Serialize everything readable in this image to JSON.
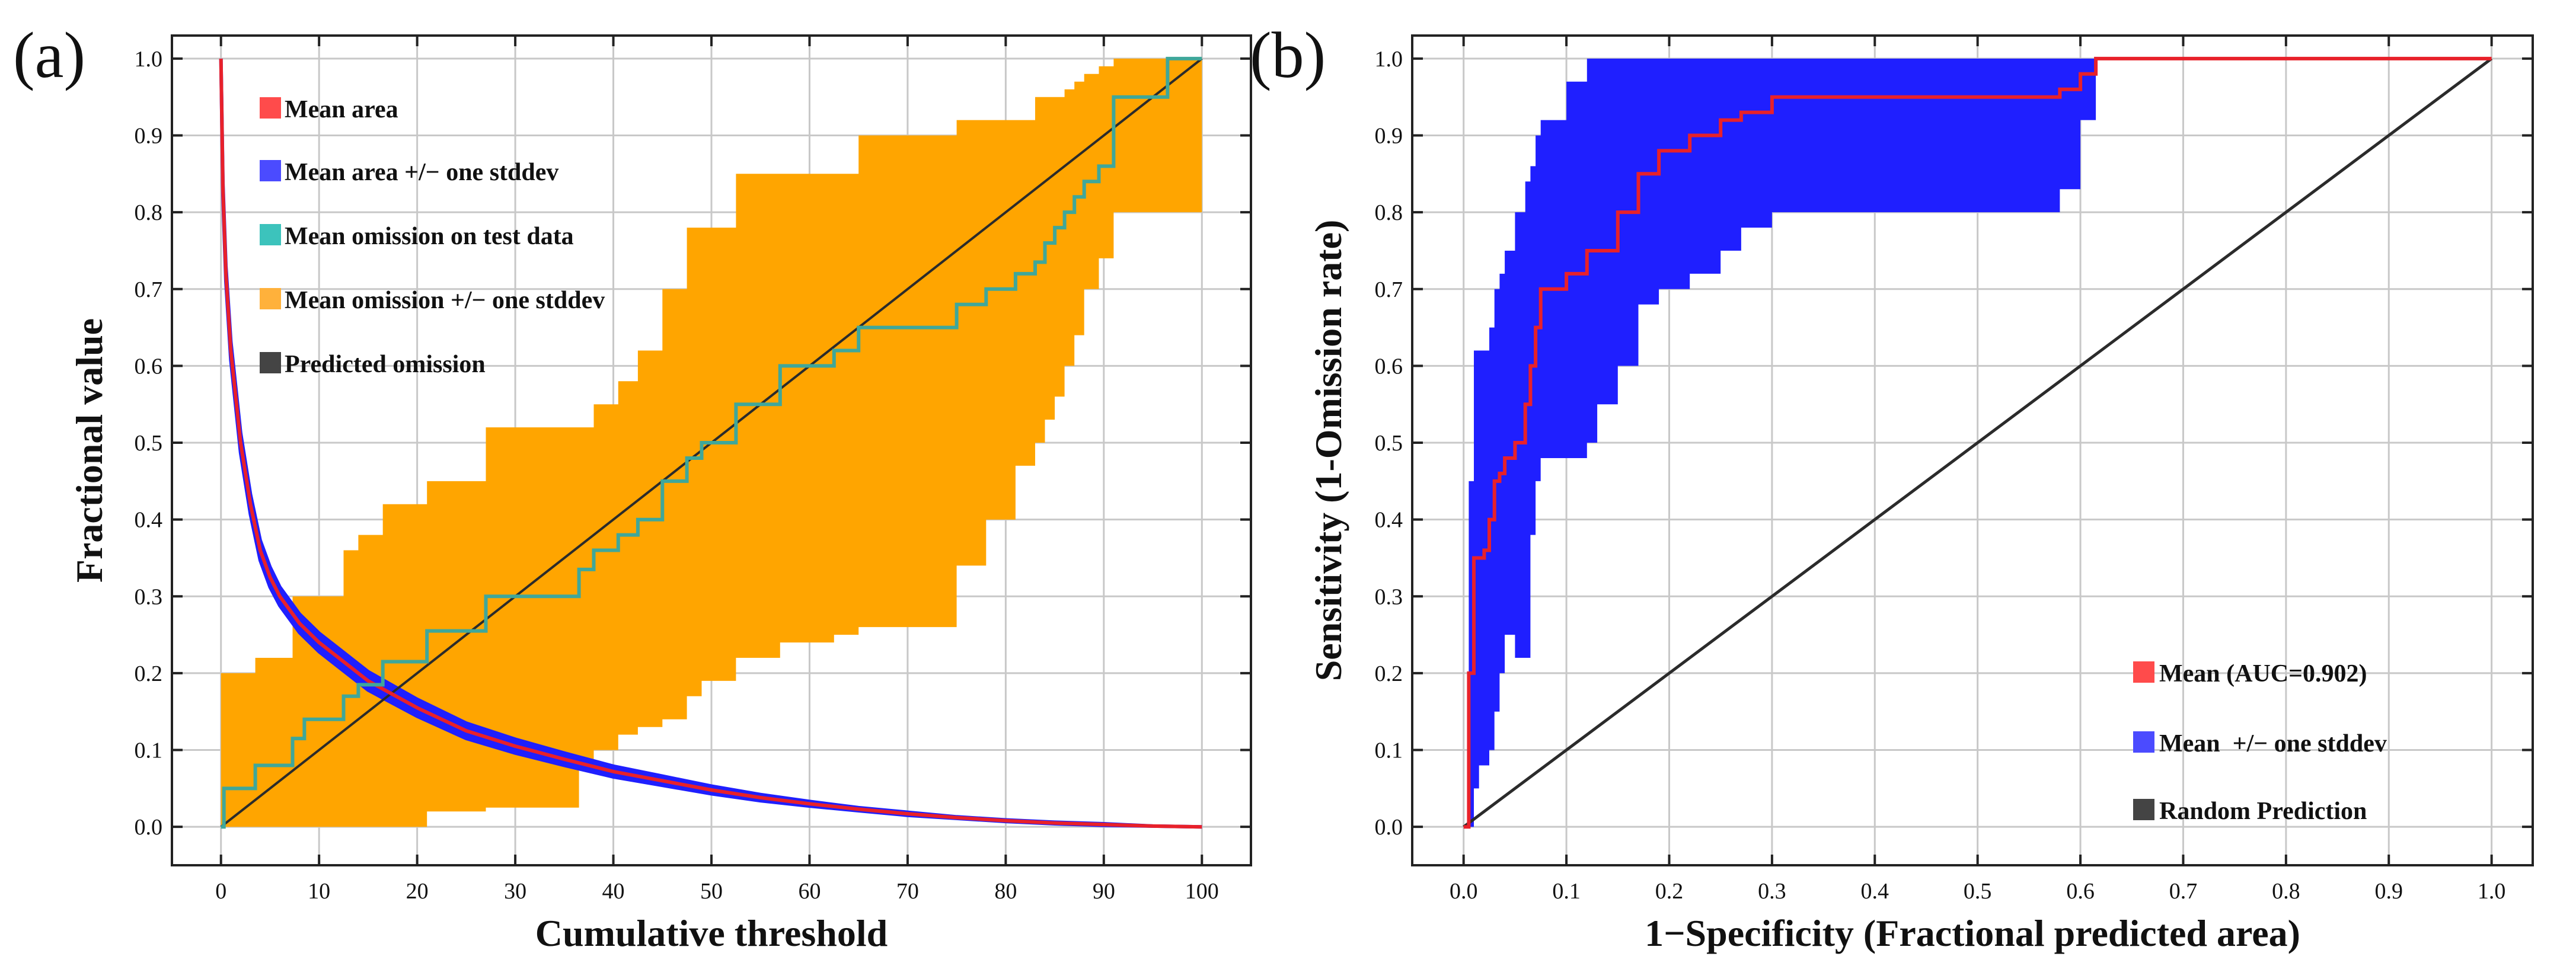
{
  "colors": {
    "mean_area": "#e8212a",
    "area_band": "#1f1fff",
    "omission": "#3fa79a",
    "omission_band": "#ffa500",
    "predicted": "#2b2b2b",
    "grid": "#c8c8c8",
    "axis": "#222222",
    "legend_red": "#ff4b4b",
    "legend_blue": "#4b4bff",
    "legend_teal": "#3cc3bc",
    "legend_orange": "#ffb13b",
    "legend_dark": "#444444"
  },
  "chart_data": [
    {
      "panel": "(a)",
      "type": "line",
      "xlabel": "Cumulative threshold",
      "ylabel": "Fractional value",
      "xlim": [
        -5,
        105
      ],
      "ylim": [
        -0.05,
        1.03
      ],
      "xticks": [
        0,
        10,
        20,
        30,
        40,
        50,
        60,
        70,
        80,
        90,
        100
      ],
      "yticks": [
        0.0,
        0.1,
        0.2,
        0.3,
        0.4,
        0.5,
        0.6,
        0.7,
        0.8,
        0.9,
        1.0
      ],
      "xtick_labels": [
        "0",
        "10",
        "20",
        "30",
        "40",
        "50",
        "60",
        "70",
        "80",
        "90",
        "100"
      ],
      "ytick_labels": [
        "0.0",
        "0.1",
        "0.2",
        "0.3",
        "0.4",
        "0.5",
        "0.6",
        "0.7",
        "0.8",
        "0.9",
        "1.0"
      ],
      "grid": true,
      "legend": {
        "position": "top-left",
        "entries": [
          {
            "label": "Mean area",
            "color": "#ff4b4b"
          },
          {
            "label": "Mean area +/− one stddev",
            "color": "#4b4bff"
          },
          {
            "label": "Mean omission on test data",
            "color": "#3cc3bc"
          },
          {
            "label": "Mean omission +/− one stddev",
            "color": "#ffb13b"
          },
          {
            "label": "Predicted omission",
            "color": "#444444"
          }
        ]
      },
      "series": [
        {
          "name": "Mean area",
          "x": [
            0,
            0.2,
            0.5,
            1,
            2,
            3,
            4,
            5,
            6,
            8,
            10,
            12,
            15,
            20,
            25,
            30,
            35,
            40,
            45,
            50,
            55,
            60,
            65,
            70,
            75,
            80,
            85,
            90,
            95,
            100
          ],
          "y": [
            1.0,
            0.83,
            0.72,
            0.62,
            0.5,
            0.42,
            0.36,
            0.325,
            0.3,
            0.265,
            0.24,
            0.22,
            0.19,
            0.155,
            0.125,
            0.105,
            0.088,
            0.072,
            0.06,
            0.048,
            0.038,
            0.03,
            0.023,
            0.017,
            0.012,
            0.008,
            0.005,
            0.003,
            0.001,
            0.0
          ],
          "band_halfwidth": [
            0,
            0.008,
            0.01,
            0.012,
            0.013,
            0.013,
            0.013,
            0.013,
            0.012,
            0.012,
            0.012,
            0.012,
            0.012,
            0.011,
            0.01,
            0.009,
            0.008,
            0.007,
            0.006,
            0.005,
            0.004,
            0.003,
            0.002,
            0.002,
            0.001,
            0.001,
            0.001,
            0.001,
            0.0,
            0.0
          ]
        },
        {
          "name": "Mean omission on test data",
          "x": [
            0,
            0.3,
            3.5,
            7.3,
            8.5,
            12.5,
            14,
            16.5,
            21,
            27,
            36.5,
            38,
            40.5,
            42.5,
            45,
            47.5,
            49,
            52.5,
            57,
            62.5,
            65,
            75,
            78,
            81,
            83,
            84,
            85,
            86,
            87,
            88,
            89.5,
            91,
            96.5,
            100
          ],
          "y": [
            0,
            0.05,
            0.08,
            0.115,
            0.14,
            0.17,
            0.185,
            0.215,
            0.255,
            0.3,
            0.335,
            0.36,
            0.38,
            0.4,
            0.45,
            0.48,
            0.5,
            0.55,
            0.6,
            0.62,
            0.65,
            0.68,
            0.7,
            0.72,
            0.735,
            0.76,
            0.78,
            0.8,
            0.82,
            0.84,
            0.86,
            0.95,
            1.0,
            1.0
          ],
          "lower": [
            0,
            0,
            0,
            0,
            0,
            0,
            0,
            0,
            0.02,
            0.025,
            0.08,
            0.1,
            0.12,
            0.13,
            0.14,
            0.17,
            0.19,
            0.22,
            0.24,
            0.25,
            0.26,
            0.34,
            0.4,
            0.47,
            0.5,
            0.53,
            0.56,
            0.6,
            0.64,
            0.7,
            0.74,
            0.8,
            0.8,
            0.8
          ],
          "upper": [
            0.2,
            0.2,
            0.22,
            0.3,
            0.3,
            0.36,
            0.38,
            0.42,
            0.45,
            0.52,
            0.52,
            0.55,
            0.58,
            0.62,
            0.7,
            0.78,
            0.78,
            0.85,
            0.85,
            0.85,
            0.9,
            0.92,
            0.92,
            0.92,
            0.95,
            0.95,
            0.95,
            0.96,
            0.97,
            0.98,
            0.99,
            1.0,
            1.0,
            1.0
          ]
        },
        {
          "name": "Predicted omission",
          "x": [
            0,
            100
          ],
          "y": [
            0,
            1
          ]
        }
      ]
    },
    {
      "panel": "(b)",
      "type": "line",
      "xlabel": "1−Specificity (Fractional predicted area)",
      "ylabel": "Sensitivity (1-Omission rate)",
      "xlim": [
        -0.05,
        1.04
      ],
      "ylim": [
        -0.05,
        1.03
      ],
      "xticks": [
        0.0,
        0.1,
        0.2,
        0.3,
        0.4,
        0.5,
        0.6,
        0.7,
        0.8,
        0.9,
        1.0
      ],
      "yticks": [
        0.0,
        0.1,
        0.2,
        0.3,
        0.4,
        0.5,
        0.6,
        0.7,
        0.8,
        0.9,
        1.0
      ],
      "xtick_labels": [
        "0.0",
        "0.1",
        "0.2",
        "0.3",
        "0.4",
        "0.5",
        "0.6",
        "0.7",
        "0.8",
        "0.9",
        "1.0"
      ],
      "ytick_labels": [
        "0.0",
        "0.1",
        "0.2",
        "0.3",
        "0.4",
        "0.5",
        "0.6",
        "0.7",
        "0.8",
        "0.9",
        "1.0"
      ],
      "grid": true,
      "legend": {
        "position": "bottom-right",
        "entries": [
          {
            "label": "Mean (AUC=0.902)",
            "color": "#ff4b4b"
          },
          {
            "label": "Mean  +/− one stddev",
            "color": "#4b4bff"
          },
          {
            "label": "Random Prediction",
            "color": "#444444"
          }
        ]
      },
      "series": [
        {
          "name": "Mean (AUC=0.902)",
          "x": [
            0,
            0.005,
            0.01,
            0.015,
            0.02,
            0.025,
            0.03,
            0.035,
            0.04,
            0.05,
            0.06,
            0.065,
            0.07,
            0.075,
            0.08,
            0.1,
            0.12,
            0.13,
            0.15,
            0.17,
            0.19,
            0.22,
            0.25,
            0.27,
            0.3,
            0.4,
            0.5,
            0.57,
            0.58,
            0.6,
            0.615,
            0.7,
            0.8,
            0.9,
            1.0
          ],
          "y": [
            0,
            0.2,
            0.35,
            0.35,
            0.36,
            0.4,
            0.45,
            0.46,
            0.48,
            0.5,
            0.55,
            0.6,
            0.65,
            0.7,
            0.7,
            0.72,
            0.75,
            0.75,
            0.8,
            0.85,
            0.88,
            0.9,
            0.92,
            0.93,
            0.95,
            0.95,
            0.95,
            0.95,
            0.96,
            0.98,
            1.0,
            1.0,
            1.0,
            1.0,
            1.0
          ],
          "lower": [
            0,
            0.0,
            0.05,
            0.08,
            0.08,
            0.1,
            0.15,
            0.2,
            0.25,
            0.22,
            0.22,
            0.38,
            0.45,
            0.48,
            0.48,
            0.48,
            0.5,
            0.55,
            0.6,
            0.68,
            0.7,
            0.72,
            0.75,
            0.78,
            0.8,
            0.8,
            0.8,
            0.8,
            0.83,
            0.92,
            1.0,
            1.0,
            1.0,
            1.0,
            1.0
          ],
          "upper": [
            0,
            0.45,
            0.62,
            0.62,
            0.62,
            0.65,
            0.7,
            0.72,
            0.75,
            0.8,
            0.84,
            0.86,
            0.9,
            0.92,
            0.92,
            0.97,
            1.0,
            1.0,
            1.0,
            1.0,
            1.0,
            1.0,
            1.0,
            1.0,
            1.0,
            1.0,
            1.0,
            1.0,
            1.0,
            1.0,
            1.0,
            1.0,
            1.0,
            1.0,
            1.0
          ]
        },
        {
          "name": "Random Prediction",
          "x": [
            0,
            1
          ],
          "y": [
            0,
            1
          ]
        }
      ]
    }
  ]
}
